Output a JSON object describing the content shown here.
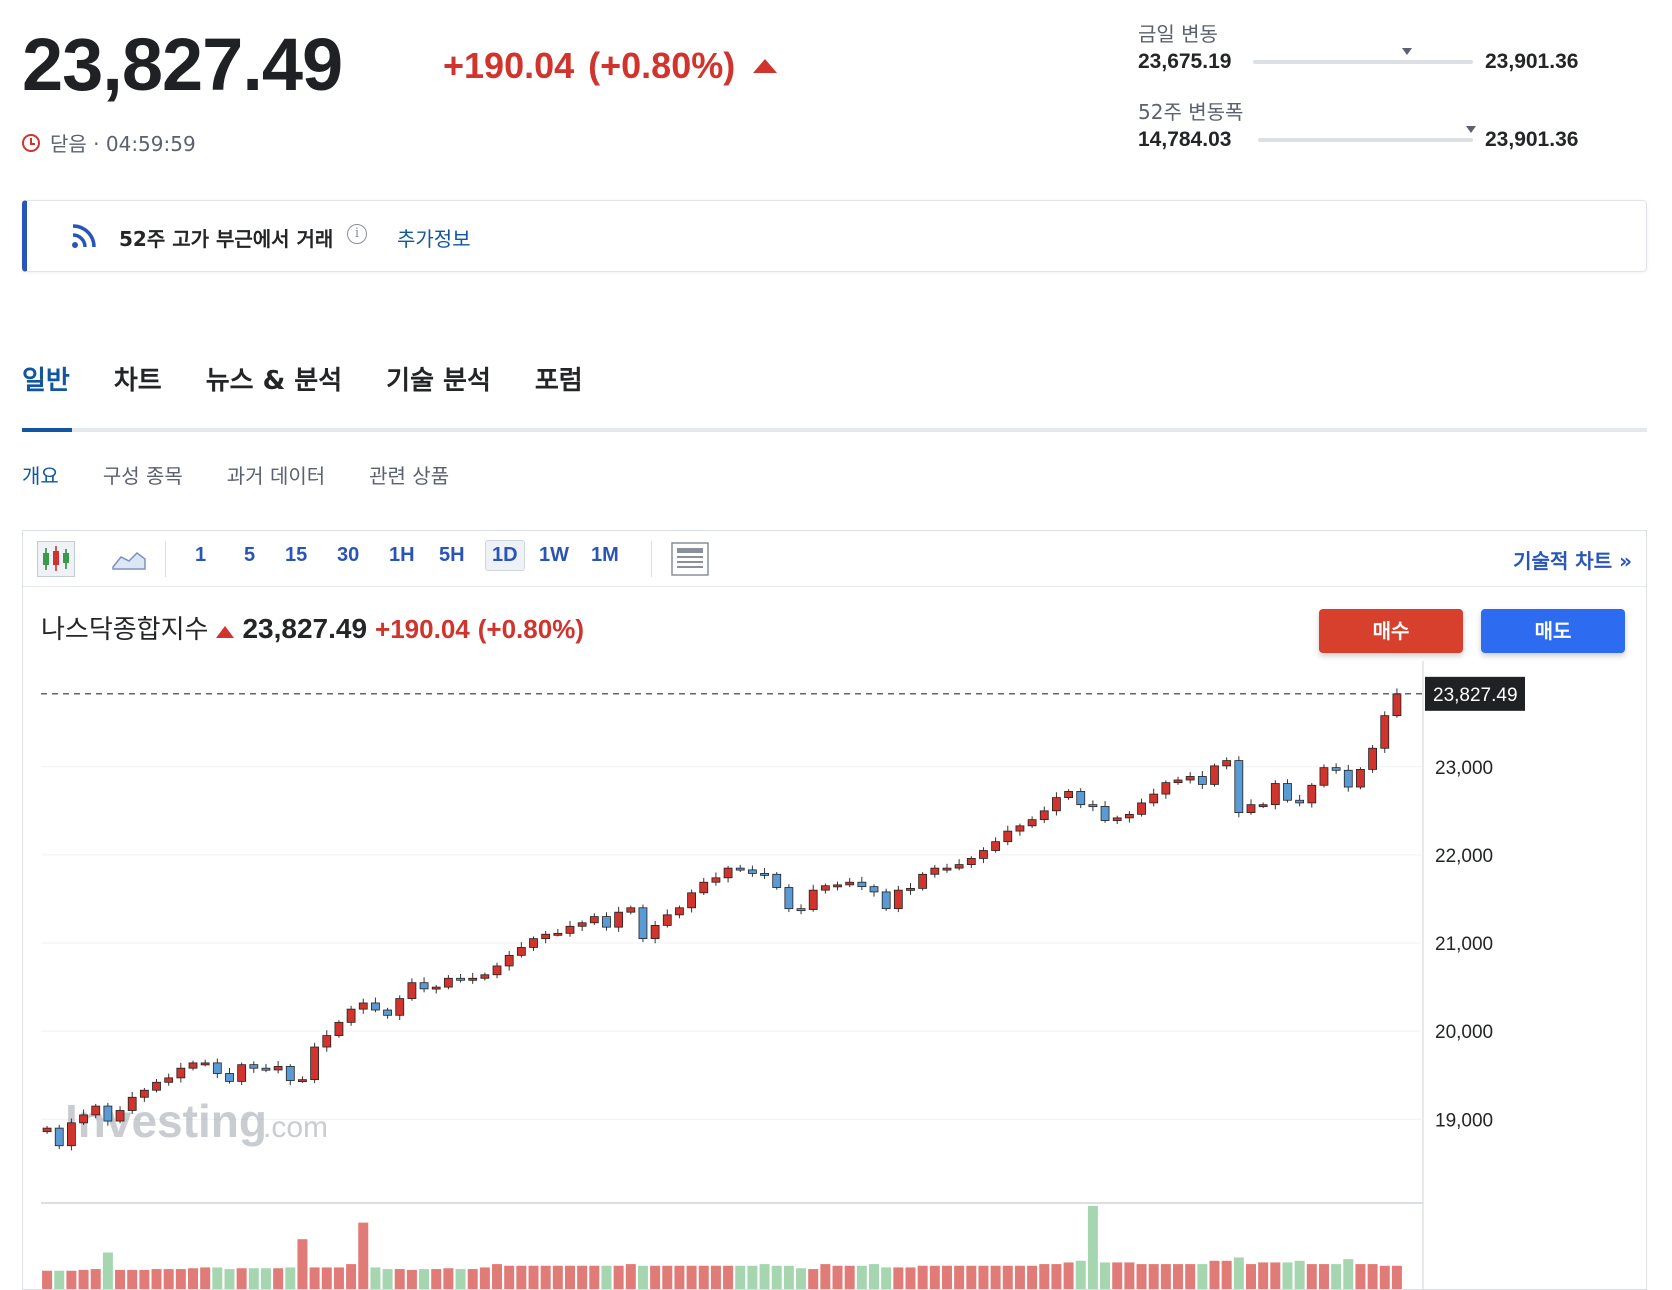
{
  "quote": {
    "price": "23,827.49",
    "change": "+190.04",
    "change_pct": "(+0.80%)",
    "status": "닫음 · 04:59:59"
  },
  "day_range": {
    "label": "금일 변동",
    "low": "23,675.19",
    "high": "23,901.36",
    "position": 0.7
  },
  "week52_range": {
    "label": "52주 변동폭",
    "low": "14,784.03",
    "high": "23,901.36",
    "position": 0.99
  },
  "banner": {
    "text": "52주 고가 부근에서 거래",
    "link": "추가정보",
    "info_icon": "i"
  },
  "tabs": [
    "일반",
    "차트",
    "뉴스 & 분석",
    "기술 분석",
    "포럼"
  ],
  "subtabs": [
    "개요",
    "구성 종목",
    "과거 데이터",
    "관련 상품"
  ],
  "toolbar": {
    "intervals": [
      "1",
      "5",
      "15",
      "30",
      "1H",
      "5H",
      "1D",
      "1W",
      "1M"
    ],
    "selected": "1D",
    "tech_chart_link": "기술적 차트 »"
  },
  "chart_header": {
    "name": "나스닥종합지수",
    "price": "23,827.49",
    "change": "+190.04",
    "change_pct": "(+0.80%)",
    "buy_label": "매수",
    "sell_label": "매도"
  },
  "colors": {
    "up": "#d0342c",
    "down_candle": "#5b9bd5",
    "accent": "#2a55b8",
    "buy": "#d8402e",
    "sell": "#2d6cf0"
  },
  "chart_data": {
    "type": "candlestick",
    "y_ticks": [
      "19,000",
      "20,000",
      "21,000",
      "22,000",
      "23,000"
    ],
    "y_range": [
      18300,
      24200
    ],
    "last_price_label": "23,827.49",
    "last_price": 23827.49,
    "watermark_text": "Investing",
    "watermark_suffix": ".com",
    "closes": [
      18900,
      18700,
      18960,
      19050,
      19150,
      18980,
      19100,
      19250,
      19330,
      19420,
      19470,
      19580,
      19640,
      19640,
      19520,
      19430,
      19620,
      19580,
      19560,
      19600,
      19440,
      19450,
      19820,
      19950,
      20100,
      20250,
      20320,
      20240,
      20180,
      20370,
      20550,
      20480,
      20500,
      20600,
      20590,
      20600,
      20640,
      20740,
      20860,
      20950,
      21050,
      21100,
      21110,
      21190,
      21230,
      21300,
      21180,
      21350,
      21400,
      21050,
      21200,
      21320,
      21400,
      21570,
      21690,
      21740,
      21850,
      21830,
      21790,
      21780,
      21630,
      21390,
      21380,
      21600,
      21650,
      21660,
      21690,
      21640,
      21580,
      21390,
      21600,
      21620,
      21780,
      21850,
      21850,
      21890,
      21960,
      22050,
      22150,
      22270,
      22330,
      22400,
      22500,
      22650,
      22720,
      22570,
      22550,
      22390,
      22420,
      22460,
      22590,
      22690,
      22820,
      22850,
      22890,
      22800,
      23010,
      23070,
      22480,
      22570,
      22570,
      22810,
      22620,
      22590,
      22790,
      22990,
      22960,
      22770,
      22970,
      23210,
      23580,
      23827.49
    ],
    "volumes": [
      22,
      22,
      22,
      23,
      24,
      44,
      23,
      23,
      23,
      24,
      24,
      24,
      25,
      26,
      26,
      24,
      25,
      25,
      25,
      25,
      26,
      60,
      26,
      26,
      26,
      30,
      80,
      26,
      24,
      24,
      23,
      24,
      24,
      25,
      24,
      24,
      26,
      30,
      28,
      28,
      28,
      28,
      28,
      28,
      28,
      28,
      28,
      28,
      30,
      28,
      28,
      28,
      28,
      28,
      28,
      28,
      28,
      28,
      28,
      30,
      28,
      28,
      25,
      24,
      30,
      28,
      28,
      28,
      30,
      26,
      26,
      26,
      28,
      28,
      28,
      28,
      28,
      28,
      28,
      28,
      28,
      28,
      30,
      30,
      32,
      34,
      100,
      32,
      32,
      32,
      30,
      30,
      30,
      30,
      30,
      30,
      34,
      34,
      38,
      30,
      32,
      32,
      32,
      34,
      30,
      30,
      30,
      36,
      30,
      30,
      28,
      28
    ]
  }
}
